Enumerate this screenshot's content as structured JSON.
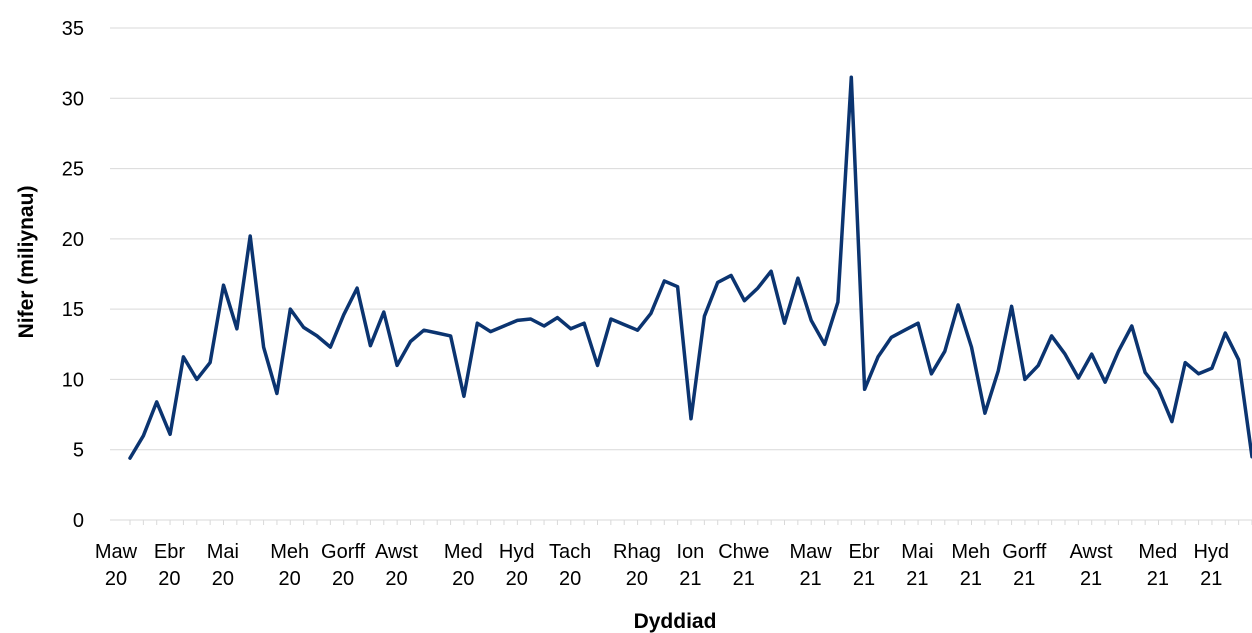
{
  "chart_data": {
    "type": "line",
    "title": "",
    "xlabel": "Dyddiad",
    "ylabel": "Nifer (miliynau)",
    "ylim": [
      0,
      35
    ],
    "yticks": [
      0,
      5,
      10,
      15,
      20,
      25,
      30,
      35
    ],
    "grid": true,
    "legend": "none",
    "line_color": "#0b3470",
    "x_tick_labels": [
      {
        "index": 0,
        "line1": "Maw",
        "line2": "20"
      },
      {
        "index": 4,
        "line1": "Ebr",
        "line2": "20"
      },
      {
        "index": 8,
        "line1": "Mai",
        "line2": "20"
      },
      {
        "index": 13,
        "line1": "Meh",
        "line2": "20"
      },
      {
        "index": 17,
        "line1": "Gorff",
        "line2": "20"
      },
      {
        "index": 21,
        "line1": "Awst",
        "line2": "20"
      },
      {
        "index": 26,
        "line1": "Med",
        "line2": "20"
      },
      {
        "index": 30,
        "line1": "Hyd",
        "line2": "20"
      },
      {
        "index": 34,
        "line1": "Tach",
        "line2": "20"
      },
      {
        "index": 39,
        "line1": "Rhag",
        "line2": "20"
      },
      {
        "index": 43,
        "line1": "Ion",
        "line2": "21"
      },
      {
        "index": 47,
        "line1": "Chwe",
        "line2": "21"
      },
      {
        "index": 52,
        "line1": "Maw",
        "line2": "21"
      },
      {
        "index": 56,
        "line1": "Ebr",
        "line2": "21"
      },
      {
        "index": 60,
        "line1": "Mai",
        "line2": "21"
      },
      {
        "index": 64,
        "line1": "Meh",
        "line2": "21"
      },
      {
        "index": 68,
        "line1": "Gorff",
        "line2": "21"
      },
      {
        "index": 73,
        "line1": "Awst",
        "line2": "21"
      },
      {
        "index": 78,
        "line1": "Med",
        "line2": "21"
      },
      {
        "index": 82,
        "line1": "Hyd",
        "line2": "21"
      }
    ],
    "series": [
      {
        "values": [
          4.4,
          6.0,
          8.4,
          6.1,
          11.6,
          10.0,
          11.2,
          16.7,
          13.6,
          20.2,
          12.3,
          9.0,
          15.0,
          13.7,
          13.1,
          12.3,
          14.6,
          16.5,
          12.4,
          14.8,
          11.0,
          12.7,
          13.5,
          13.3,
          13.1,
          8.8,
          14.0,
          13.4,
          13.8,
          14.2,
          14.3,
          13.8,
          14.4,
          13.6,
          14.0,
          11.0,
          14.3,
          13.9,
          13.5,
          14.7,
          17.0,
          16.6,
          7.2,
          14.5,
          16.9,
          17.4,
          15.6,
          16.5,
          17.7,
          14.0,
          17.2,
          14.2,
          12.5,
          15.5,
          31.5,
          9.3,
          11.6,
          13.0,
          13.5,
          14.0,
          10.4,
          12.0,
          15.3,
          12.3,
          7.6,
          10.6,
          15.2,
          10.0,
          11.0,
          13.1,
          11.8,
          10.1,
          11.8,
          9.8,
          12.0,
          13.8,
          10.5,
          9.3,
          7.0,
          11.2,
          10.4,
          10.8,
          13.3,
          11.4,
          4.5
        ]
      }
    ]
  }
}
